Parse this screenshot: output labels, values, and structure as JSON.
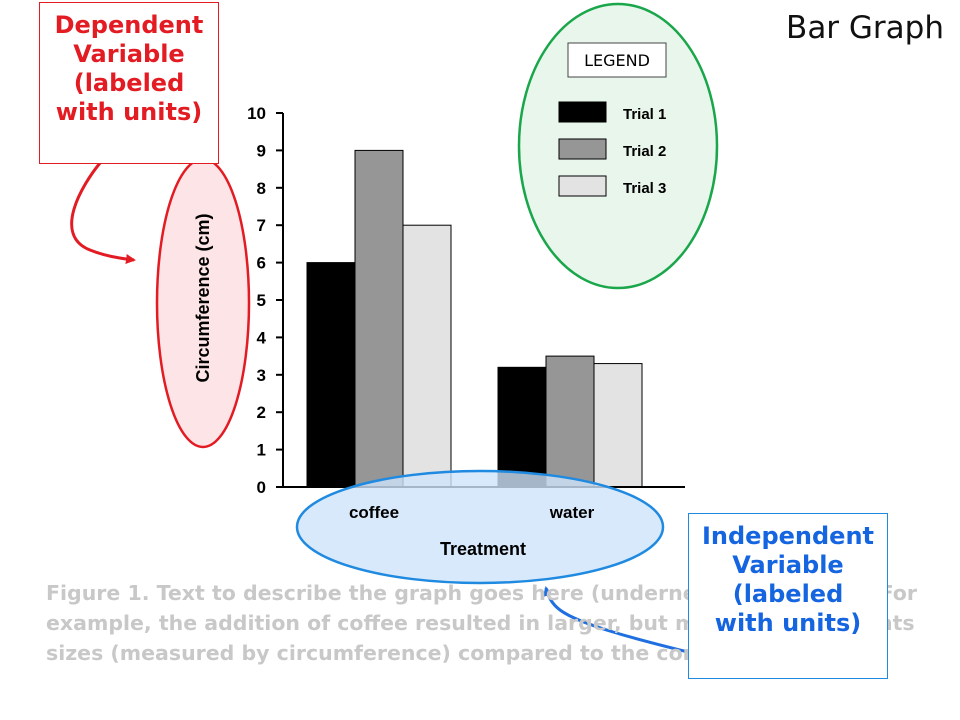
{
  "slide": {
    "title": "Bar Graph",
    "caption_lines": [
      "Figure 1.  Text to describe the graph goes here (underneath the graph). For",
      "example, the addition of coffee resulted in larger, but more variable plants",
      "sizes (measured by circumference) compared to the control."
    ]
  },
  "callouts": {
    "dependent": {
      "lines": [
        "Dependent",
        "Variable",
        "(labeled",
        "with units)"
      ],
      "color": "#e31b23"
    },
    "independent": {
      "lines": [
        "Independent",
        "Variable",
        "(labeled",
        "with units)"
      ],
      "color": "#1565e0"
    }
  },
  "legend_box": {
    "title": "LEGEND"
  },
  "chart_data": {
    "type": "bar",
    "categories": [
      "coffee",
      "water"
    ],
    "series": [
      {
        "name": "Trial 1",
        "values": [
          6,
          3.2
        ],
        "color": "#000000"
      },
      {
        "name": "Trial 2",
        "values": [
          9,
          3.5
        ],
        "color": "#969696"
      },
      {
        "name": "Trial 3",
        "values": [
          7,
          3.3
        ],
        "color": "#e3e3e3"
      }
    ],
    "ylim": [
      0,
      10
    ],
    "yticks": [
      "0",
      "1",
      "2",
      "3",
      "4",
      "5",
      "6",
      "7",
      "8",
      "9",
      "10"
    ],
    "xlabel": "Treatment",
    "ylabel": "Circumference (cm)",
    "legend_placement": "top-right",
    "grid": false
  }
}
